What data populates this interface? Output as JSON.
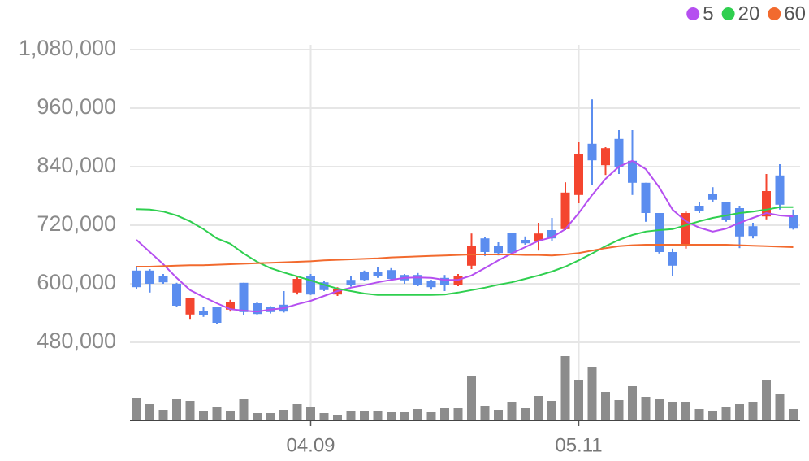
{
  "chart_data": {
    "type": "candlestick",
    "categories": [
      null,
      null,
      null,
      null,
      null,
      null,
      null,
      null,
      null,
      null,
      null,
      null,
      null,
      "04.09",
      null,
      null,
      null,
      null,
      null,
      null,
      null,
      null,
      null,
      null,
      null,
      null,
      null,
      null,
      null,
      null,
      null,
      null,
      null,
      "05.11",
      null,
      null,
      null,
      null,
      null,
      null,
      null,
      null,
      null,
      null,
      null,
      null,
      null,
      null,
      null,
      null
    ],
    "open": [
      627000,
      627000,
      615000,
      600000,
      537000,
      545000,
      552000,
      547000,
      602000,
      560000,
      552000,
      557000,
      582000,
      615000,
      603000,
      578000,
      608000,
      625000,
      625000,
      628000,
      618000,
      618000,
      605000,
      612000,
      598000,
      637000,
      693000,
      678000,
      705000,
      690000,
      688000,
      710000,
      712000,
      782000,
      887000,
      843000,
      897000,
      852000,
      807000,
      745000,
      665000,
      677000,
      760000,
      785000,
      768000,
      755000,
      718000,
      738000,
      822000,
      740000
    ],
    "high": [
      635000,
      630000,
      620000,
      602000,
      570000,
      552000,
      552000,
      567000,
      602000,
      562000,
      554000,
      585000,
      615000,
      620000,
      606000,
      593000,
      615000,
      627000,
      635000,
      632000,
      620000,
      622000,
      608000,
      618000,
      620000,
      703000,
      695000,
      685000,
      705000,
      697000,
      725000,
      735000,
      808000,
      890000,
      978000,
      880000,
      915000,
      915000,
      807000,
      745000,
      672000,
      748000,
      767000,
      798000,
      768000,
      760000,
      725000,
      825000,
      845000,
      752000
    ],
    "low": [
      590000,
      582000,
      600000,
      552000,
      528000,
      532000,
      518000,
      543000,
      535000,
      537000,
      539000,
      541000,
      578000,
      577000,
      585000,
      575000,
      594000,
      605000,
      612000,
      605000,
      600000,
      595000,
      588000,
      585000,
      595000,
      630000,
      657000,
      658000,
      660000,
      680000,
      668000,
      688000,
      710000,
      765000,
      802000,
      823000,
      825000,
      782000,
      727000,
      662000,
      615000,
      672000,
      745000,
      768000,
      727000,
      673000,
      693000,
      732000,
      752000,
      711000
    ],
    "close": [
      593000,
      600000,
      603000,
      555000,
      570000,
      535000,
      520000,
      563000,
      542000,
      538000,
      542000,
      543000,
      610000,
      578000,
      587000,
      590000,
      598000,
      608000,
      615000,
      610000,
      607000,
      598000,
      593000,
      598000,
      615000,
      677000,
      665000,
      663000,
      663000,
      683000,
      703000,
      693000,
      787000,
      865000,
      853000,
      878000,
      840000,
      807000,
      745000,
      665000,
      637000,
      745000,
      750000,
      772000,
      730000,
      697000,
      698000,
      790000,
      762000,
      713000
    ],
    "up_color": "#f4452f",
    "down_color": "#5b8def",
    "series": [
      {
        "name": "5",
        "color": "#b54ff0",
        "values": [
          690000,
          665000,
          640000,
          612000,
          587000,
          573000,
          560000,
          548000,
          545000,
          543000,
          547000,
          550000,
          558000,
          565000,
          575000,
          585000,
          592000,
          597000,
          603000,
          608000,
          612000,
          613000,
          612000,
          608000,
          608000,
          617000,
          632000,
          648000,
          662000,
          675000,
          688000,
          695000,
          712000,
          745000,
          782000,
          815000,
          840000,
          852000,
          835000,
          798000,
          752000,
          728000,
          715000,
          707000,
          713000,
          725000,
          735000,
          745000,
          740000,
          738000
        ]
      },
      {
        "name": "20",
        "color": "#2fcf4f",
        "values": [
          753000,
          752000,
          748000,
          740000,
          728000,
          712000,
          693000,
          682000,
          662000,
          645000,
          632000,
          623000,
          615000,
          607000,
          598000,
          590000,
          585000,
          580000,
          577000,
          577000,
          577000,
          577000,
          577000,
          578000,
          582000,
          587000,
          592000,
          598000,
          603000,
          610000,
          617000,
          625000,
          635000,
          648000,
          662000,
          677000,
          690000,
          700000,
          707000,
          710000,
          712000,
          720000,
          728000,
          735000,
          740000,
          745000,
          748000,
          752000,
          757000,
          757000
        ]
      },
      {
        "name": "60",
        "color": "#f26a2e",
        "values": [
          635000,
          635000,
          636000,
          637000,
          638000,
          638000,
          639000,
          640000,
          641000,
          642000,
          643000,
          644000,
          645000,
          646000,
          648000,
          649000,
          650000,
          651000,
          652000,
          654000,
          655000,
          656000,
          657000,
          658000,
          659000,
          660000,
          660000,
          660000,
          660000,
          659000,
          659000,
          658000,
          660000,
          663000,
          668000,
          673000,
          677000,
          679000,
          680000,
          680000,
          680000,
          680000,
          680000,
          680000,
          680000,
          679000,
          678000,
          677000,
          676000,
          675000
        ]
      }
    ],
    "volume": {
      "color": "#8c8c8c",
      "ylim": [
        0,
        85
      ],
      "values": [
        27,
        20,
        13,
        26,
        24,
        11,
        16,
        12,
        26,
        9,
        9,
        13,
        20,
        17,
        9,
        7,
        12,
        12,
        11,
        10,
        10,
        14,
        10,
        15,
        15,
        55,
        18,
        13,
        23,
        15,
        30,
        24,
        79,
        50,
        65,
        35,
        25,
        42,
        29,
        26,
        23,
        23,
        14,
        12,
        17,
        20,
        22,
        50,
        32,
        14
      ]
    },
    "ylim": [
      465000,
      1090000
    ],
    "yticks": [
      {
        "value": 480000,
        "label": "480,000"
      },
      {
        "value": 600000,
        "label": "600,000"
      },
      {
        "value": 720000,
        "label": "720,000"
      },
      {
        "value": 840000,
        "label": "840,000"
      },
      {
        "value": 960000,
        "label": "960,000"
      },
      {
        "value": 1080000,
        "label": "1,080,000"
      }
    ],
    "grid": true
  }
}
